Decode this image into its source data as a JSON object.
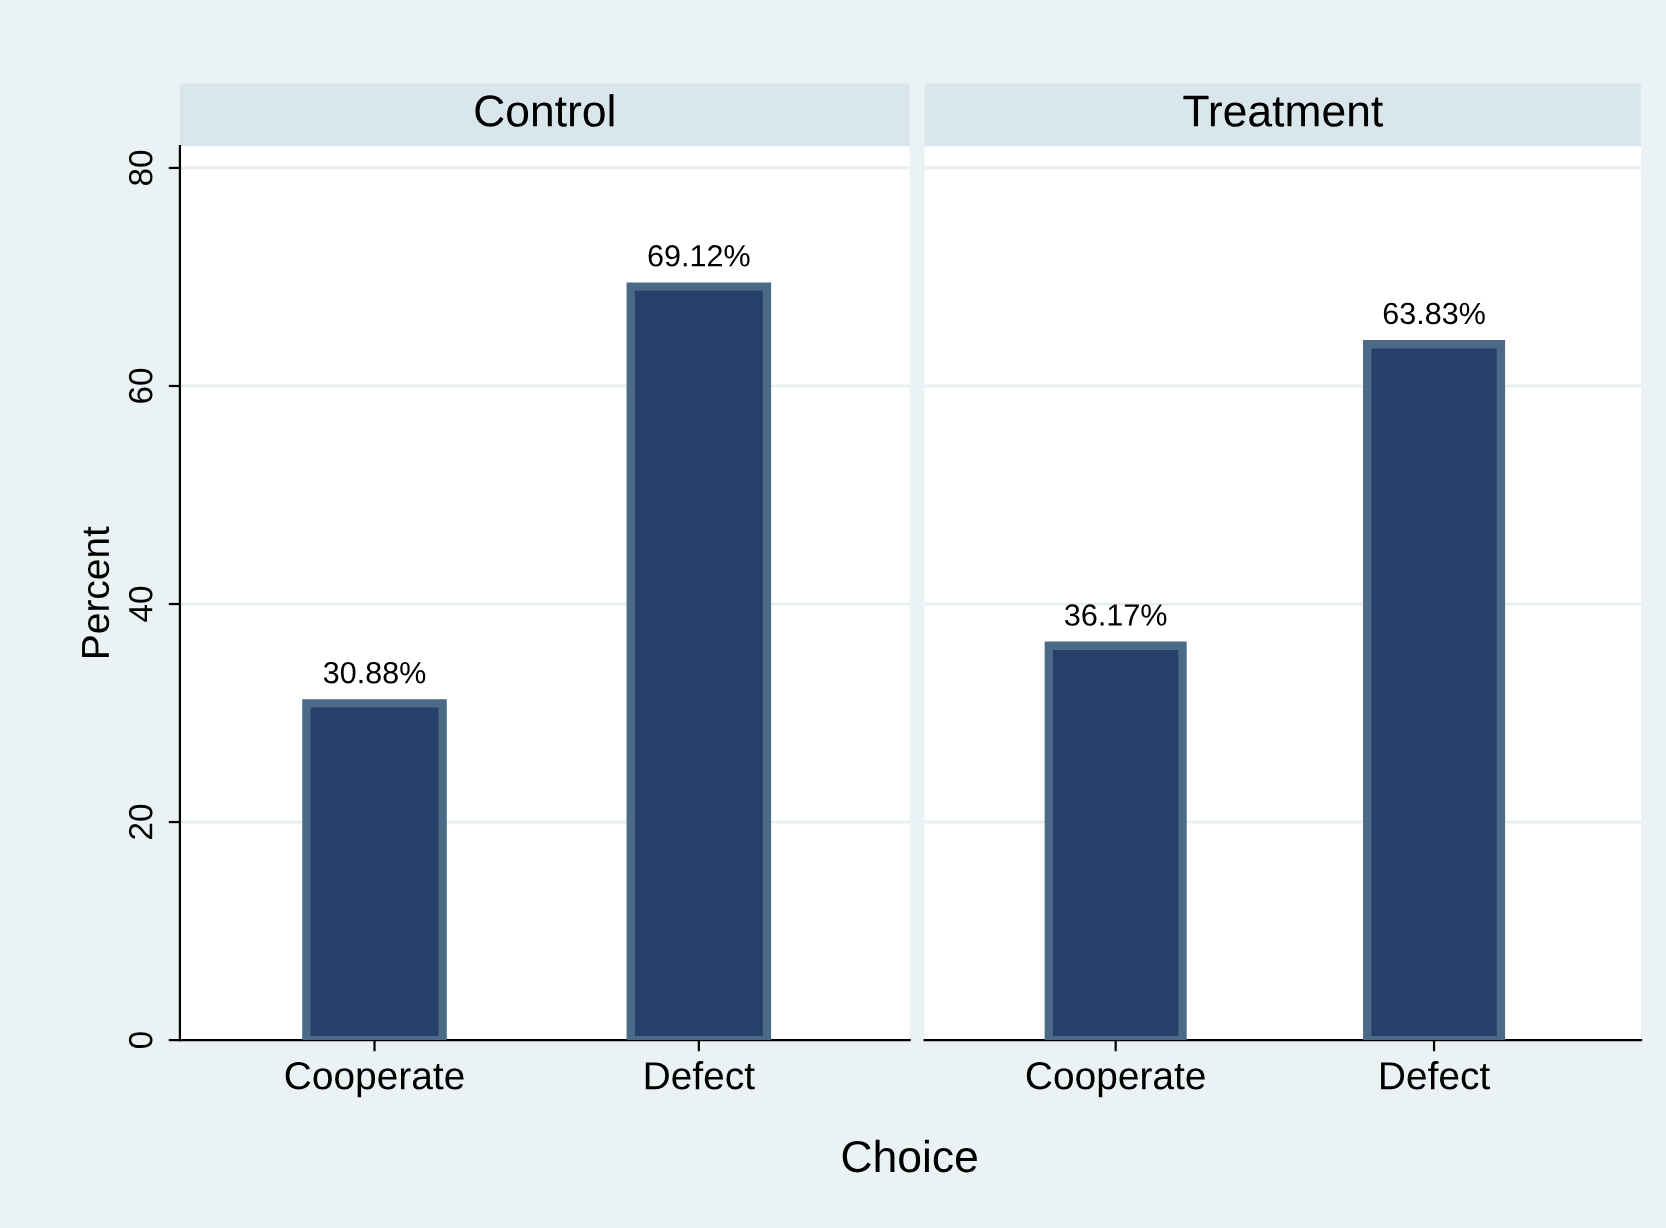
{
  "chart_data": [
    {
      "type": "bar",
      "title": "Control",
      "xlabel": "Choice",
      "ylabel": "Percent",
      "categories": [
        "Cooperate",
        "Defect"
      ],
      "series": [
        {
          "color": "#283e6b",
          "values": [
            30.88,
            69.12
          ],
          "value_labels": [
            "30.88%",
            "69.12%"
          ]
        }
      ],
      "ylim": [
        0,
        82
      ],
      "yticks": [
        0,
        20,
        40,
        60,
        80
      ],
      "grid": "y",
      "legend": false
    },
    {
      "type": "bar",
      "title": "Treatment",
      "categories": [
        "Cooperate",
        "Defect"
      ],
      "series": [
        {
          "color": "#283e6b",
          "values": [
            36.17,
            63.83
          ],
          "value_labels": [
            "36.17%",
            "63.83%"
          ]
        }
      ],
      "ylim": [
        0,
        82
      ],
      "yticks": [
        0,
        20,
        40,
        60,
        80
      ],
      "grid": "y",
      "legend": false,
      "tick_labels": "x"
    }
  ]
}
